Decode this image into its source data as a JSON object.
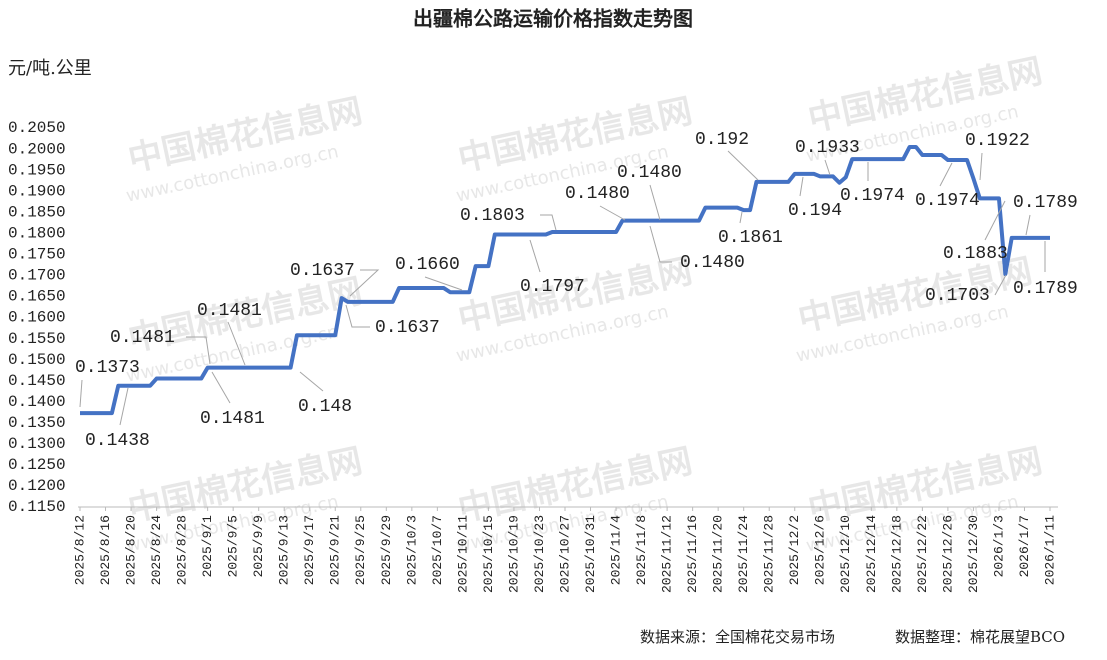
{
  "chart_data": {
    "type": "line",
    "title": "出疆棉公路运输价格指数走势图",
    "y_label": "元/吨.公里",
    "source": "数据来源：全国棉花交易市场",
    "note": "数据整理：棉花展望BCO",
    "watermark": "中国棉花信息网",
    "watermark_url": "www.cottonchina.org.cn",
    "color": "#4472c4",
    "ylim": [
      0.115,
      0.205
    ],
    "yticks": [
      {
        "value": 0.115,
        "label": "0.1150"
      },
      {
        "value": 0.12,
        "label": "0.1200"
      },
      {
        "value": 0.125,
        "label": "0.1250"
      },
      {
        "value": 0.13,
        "label": "0.1300"
      },
      {
        "value": 0.135,
        "label": "0.1350"
      },
      {
        "value": 0.14,
        "label": "0.1400"
      },
      {
        "value": 0.145,
        "label": "0.1450"
      },
      {
        "value": 0.15,
        "label": "0.1500"
      },
      {
        "value": 0.155,
        "label": "0.1550"
      },
      {
        "value": 0.16,
        "label": "0.1600"
      },
      {
        "value": 0.165,
        "label": "0.1650"
      },
      {
        "value": 0.17,
        "label": "0.1700"
      },
      {
        "value": 0.175,
        "label": "0.1750"
      },
      {
        "value": 0.18,
        "label": "0.1800"
      },
      {
        "value": 0.185,
        "label": "0.1850"
      },
      {
        "value": 0.19,
        "label": "0.1900"
      },
      {
        "value": 0.195,
        "label": "0.1950"
      },
      {
        "value": 0.2,
        "label": "0.2000"
      },
      {
        "value": 0.205,
        "label": "0.2050"
      }
    ],
    "categories": [
      "2025/8/12",
      null,
      null,
      null,
      "2025/8/16",
      null,
      null,
      null,
      "2025/8/20",
      null,
      null,
      null,
      "2025/8/24",
      null,
      null,
      null,
      "2025/8/28",
      null,
      null,
      null,
      "2025/9/1",
      null,
      null,
      null,
      "2025/9/5",
      null,
      null,
      null,
      "2025/9/9",
      null,
      null,
      null,
      "2025/9/13",
      null,
      null,
      null,
      "2025/9/17",
      null,
      null,
      null,
      "2025/9/21",
      null,
      null,
      null,
      "2025/9/25",
      null,
      null,
      null,
      "2025/9/29",
      null,
      null,
      null,
      "2025/10/3",
      null,
      null,
      null,
      "2025/10/7",
      null,
      null,
      null,
      "2025/10/11",
      null,
      null,
      null,
      "2025/10/15",
      null,
      null,
      null,
      "2025/10/19",
      null,
      null,
      null,
      "2025/10/23",
      null,
      null,
      null,
      "2025/10/27",
      null,
      null,
      null,
      "2025/10/31",
      null,
      null,
      null,
      "2025/11/4",
      null,
      null,
      null,
      "2025/11/8",
      null,
      null,
      null,
      "2025/11/12",
      null,
      null,
      null,
      "2025/11/16",
      null,
      null,
      null,
      "2025/11/20",
      null,
      null,
      null,
      "2025/11/24",
      null,
      null,
      null,
      "2025/11/28",
      null,
      null,
      null,
      "2025/12/2",
      null,
      null,
      null,
      "2025/12/6",
      null,
      null,
      null,
      "2025/12/10",
      null,
      null,
      null,
      "2025/12/14",
      null,
      null,
      null,
      "2025/12/18",
      null,
      null,
      null,
      "2025/12/22",
      null,
      null,
      null,
      "2025/12/26",
      null,
      null,
      null,
      "2025/12/30",
      null,
      null,
      null,
      "2026/1/3",
      null,
      null,
      null,
      "2026/1/7",
      null,
      null,
      null,
      "2026/1/11"
    ],
    "values": [
      0.1373,
      0.1373,
      0.1373,
      0.1373,
      0.1373,
      0.1373,
      0.1438,
      0.1438,
      0.1438,
      0.1438,
      0.1438,
      0.1438,
      0.1455,
      0.1455,
      0.1455,
      0.1455,
      0.1455,
      0.1455,
      0.1455,
      0.1455,
      0.1481,
      0.1481,
      0.1481,
      0.1481,
      0.1481,
      0.1481,
      0.1481,
      0.1481,
      0.1481,
      0.1481,
      0.1481,
      0.1481,
      0.1481,
      0.1481,
      0.1558,
      0.1558,
      0.1558,
      0.1558,
      0.1558,
      0.1558,
      0.1558,
      0.1646,
      0.1637,
      0.1637,
      0.1637,
      0.1637,
      0.1637,
      0.1637,
      0.1637,
      0.1637,
      0.167,
      0.167,
      0.167,
      0.167,
      0.167,
      0.167,
      0.167,
      0.167,
      0.166,
      0.166,
      0.166,
      0.166,
      0.1722,
      0.1722,
      0.1722,
      0.1797,
      0.1797,
      0.1797,
      0.1797,
      0.1797,
      0.1797,
      0.1797,
      0.1797,
      0.1797,
      0.1803,
      0.1803,
      0.1803,
      0.1803,
      0.1803,
      0.1803,
      0.1803,
      0.1803,
      0.1803,
      0.1803,
      0.1803,
      0.183,
      0.183,
      0.183,
      0.183,
      0.183,
      0.183,
      0.183,
      0.183,
      0.183,
      0.183,
      0.183,
      0.183,
      0.183,
      0.1861,
      0.1861,
      0.1861,
      0.1861,
      0.1861,
      0.1861,
      0.1855,
      0.1855,
      0.1922,
      0.1922,
      0.1922,
      0.1922,
      0.1922,
      0.1922,
      0.1941,
      0.1941,
      0.1941,
      0.1941,
      0.1935,
      0.1935,
      0.1935,
      0.192,
      0.1933,
      0.1976,
      0.1976,
      0.1976,
      0.1976,
      0.1976,
      0.1976,
      0.1976,
      0.1976,
      0.1976,
      0.2005,
      0.2005,
      0.1986,
      0.1986,
      0.1986,
      0.1986,
      0.1974,
      0.1974,
      0.1974,
      0.1974,
      0.193,
      0.1883,
      0.1883,
      0.1883,
      0.1883,
      0.1703,
      0.1789,
      0.1789,
      0.1789,
      0.1789,
      0.1789,
      0.1789,
      0.1789
    ],
    "annotations": [
      "0.1373",
      "0.1438",
      "0.1481",
      "0.1481",
      "0.1481",
      "0.148",
      "0.1637",
      "0.1637",
      "0.1660",
      "0.1803",
      "0.1797",
      "0.1480",
      "0.1480",
      "0.1480",
      "0.192",
      "0.1861",
      "0.194",
      "0.1933",
      "0.1974",
      "0.1974",
      "0.1922",
      "0.1883",
      "0.1703",
      "0.1789",
      "0.1789"
    ]
  }
}
